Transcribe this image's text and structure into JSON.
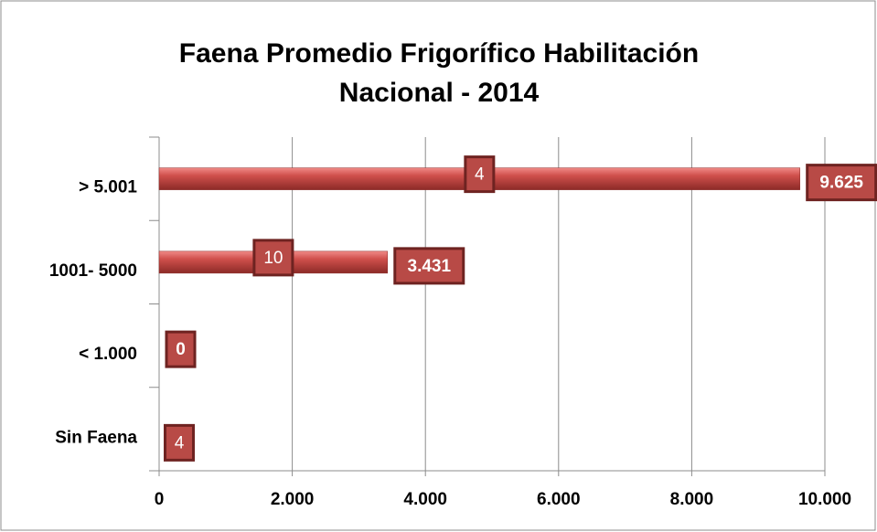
{
  "chart_data": {
    "type": "bar",
    "orientation": "horizontal",
    "title": "Faena Promedio Frigorífico Habilitación",
    "subtitle": "Nacional - 2014",
    "categories": [
      "> 5.001",
      "1001- 5000",
      "< 1.000",
      "Sin Faena"
    ],
    "values": [
      9625,
      3431,
      0,
      null
    ],
    "value_labels": [
      "9.625",
      "3.431",
      "0",
      null
    ],
    "counts": [
      4,
      10,
      null,
      4
    ],
    "color": "#c0504d",
    "xlim": [
      0,
      10000
    ],
    "xticks": [
      0,
      {
        "value": 2000,
        "label": "2.000"
      },
      {
        "value": 4000,
        "label": "4.000"
      },
      {
        "value": 6000,
        "label": "6.000"
      },
      {
        "value": 8000,
        "label": "8.000"
      },
      {
        "value": 10000,
        "label": "10.000"
      }
    ],
    "grid": true
  }
}
